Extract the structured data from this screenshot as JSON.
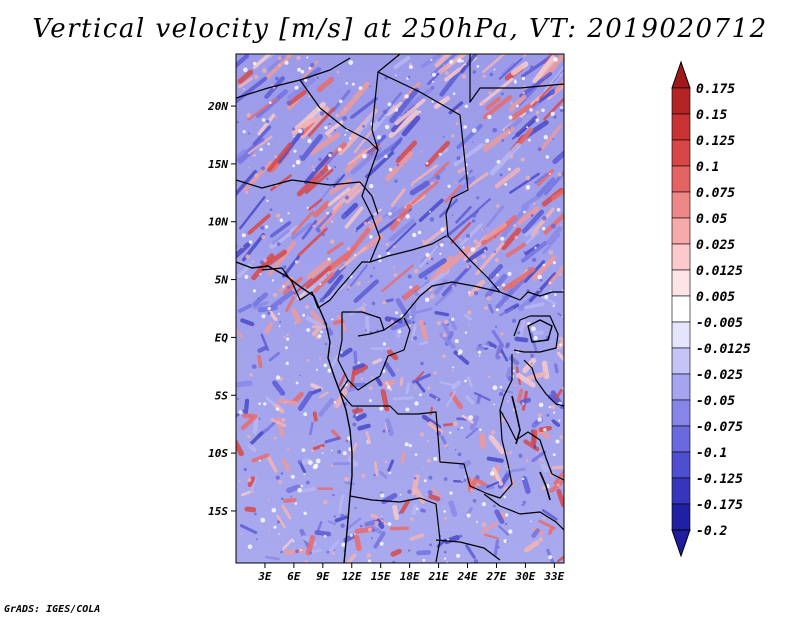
{
  "title": "Vertical velocity [m/s] at 250hPa, VT: 2019020712",
  "credit": "GrADS: IGES/COLA",
  "map": {
    "region": "Central Africa",
    "lon_range": [
      0,
      34
    ],
    "lat_range": [
      -19.5,
      24.5
    ],
    "x_ticks": [
      {
        "value": 3,
        "label": "3E"
      },
      {
        "value": 6,
        "label": "6E"
      },
      {
        "value": 9,
        "label": "9E"
      },
      {
        "value": 12,
        "label": "12E"
      },
      {
        "value": 15,
        "label": "15E"
      },
      {
        "value": 18,
        "label": "18E"
      },
      {
        "value": 21,
        "label": "21E"
      },
      {
        "value": 24,
        "label": "24E"
      },
      {
        "value": 27,
        "label": "27E"
      },
      {
        "value": 30,
        "label": "30E"
      },
      {
        "value": 33,
        "label": "33E"
      }
    ],
    "y_ticks": [
      {
        "value": 20,
        "label": "20N"
      },
      {
        "value": 15,
        "label": "15N"
      },
      {
        "value": 10,
        "label": "10N"
      },
      {
        "value": 5,
        "label": "5N"
      },
      {
        "value": 0,
        "label": "EQ"
      },
      {
        "value": -5,
        "label": "5S"
      },
      {
        "value": -10,
        "label": "10S"
      },
      {
        "value": -15,
        "label": "15S"
      }
    ]
  },
  "colorbar": {
    "levels": [
      {
        "label": "0.175",
        "color": "#a01818"
      },
      {
        "label": "0.15",
        "color": "#b42424"
      },
      {
        "label": "0.125",
        "color": "#c83232"
      },
      {
        "label": "0.1",
        "color": "#d84646"
      },
      {
        "label": "0.075",
        "color": "#e46464"
      },
      {
        "label": "0.05",
        "color": "#ee8888"
      },
      {
        "label": "0.025",
        "color": "#f6aaaa"
      },
      {
        "label": "0.0125",
        "color": "#fbcaca"
      },
      {
        "label": "0.005",
        "color": "#fde4e4"
      },
      {
        "label": "-0.005",
        "color": "#ffffff"
      },
      {
        "label": "-0.0125",
        "color": "#e4e4fc"
      },
      {
        "label": "-0.025",
        "color": "#c4c4f6"
      },
      {
        "label": "-0.05",
        "color": "#a4a4f0"
      },
      {
        "label": "-0.075",
        "color": "#8686e8"
      },
      {
        "label": "-0.1",
        "color": "#6a6ade"
      },
      {
        "label": "-0.125",
        "color": "#4e4ed0"
      },
      {
        "label": "-0.175",
        "color": "#3636bc"
      },
      {
        "label": "-0.2",
        "color": "#2020a4"
      }
    ],
    "top_color": "#a01818",
    "bottom_color": "#1e1e9c"
  }
}
